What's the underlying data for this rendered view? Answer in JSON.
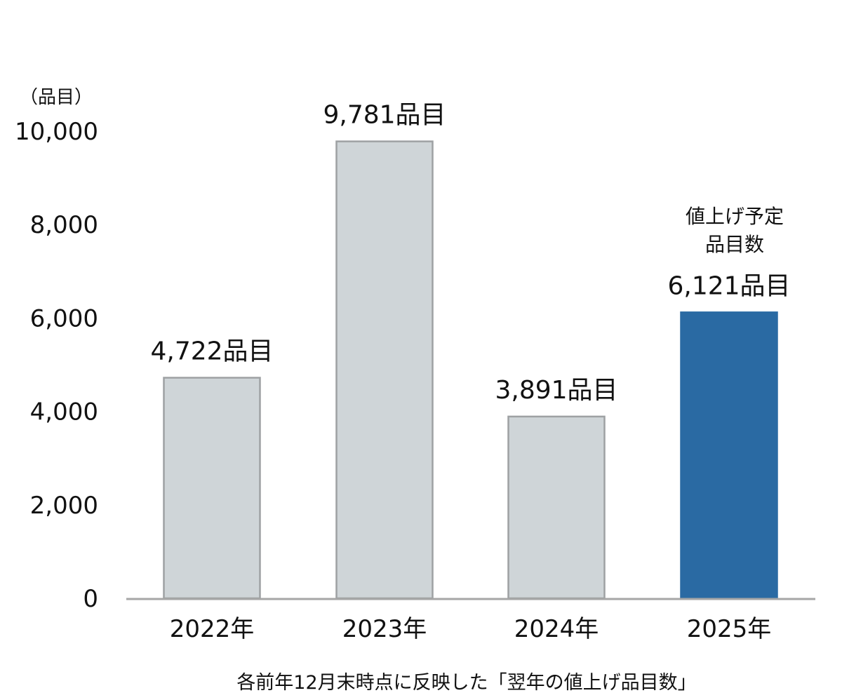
{
  "chart_data": {
    "type": "bar",
    "categories": [
      "2022年",
      "2023年",
      "2024年",
      "2025年"
    ],
    "series": [
      {
        "values": [
          4722,
          9781,
          3891,
          6121
        ],
        "colors": [
          "#cfd5d8",
          "#cfd5d8",
          "#cfd5d8",
          "#2a6aa3"
        ],
        "value_labels": [
          "4,722品目",
          "9,781品目",
          "3,891品目",
          "6,121品目"
        ]
      }
    ],
    "ylim": [
      0,
      10000
    ],
    "y_ticks": [
      0,
      2000,
      4000,
      6000,
      8000,
      10000
    ],
    "y_tick_labels": [
      "0",
      "2,000",
      "4,000",
      "6,000",
      "8,000",
      "10,000"
    ],
    "y_unit_label": "（品目）",
    "grid": false,
    "legend": "none",
    "bar_outline_color": "#9ea1a3",
    "axis_color": "#a6a6a6",
    "annotation": {
      "category": "2025年",
      "lines": [
        "値上げ予定",
        "品目数"
      ]
    },
    "footnote": "各前年12月末時点に反映した「翌年の値上げ品目数」"
  }
}
